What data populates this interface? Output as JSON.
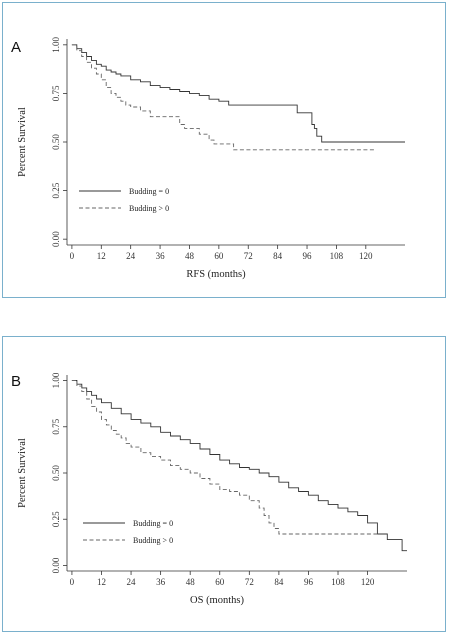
{
  "chart_data": [
    {
      "panel": "A",
      "type": "line",
      "xlabel": "RFS (months)",
      "ylabel": "Percent Survival",
      "xticks": [
        0,
        12,
        24,
        36,
        48,
        60,
        72,
        84,
        96,
        108,
        120
      ],
      "yticks": [
        0.0,
        0.25,
        0.5,
        0.75,
        1.0
      ],
      "ytick_labels": [
        "0.00",
        "0.25",
        "0.50",
        "0.75",
        "1.00"
      ],
      "xlim": [
        -2,
        136
      ],
      "ylim": [
        -0.03,
        1.03
      ],
      "legend_placement": "lower-left",
      "series": [
        {
          "name": "Budding = 0",
          "style": "solid",
          "x": [
            0,
            2,
            4,
            6,
            8,
            10,
            12,
            14,
            16,
            18,
            20,
            24,
            28,
            32,
            36,
            40,
            44,
            48,
            52,
            56,
            60,
            64,
            68,
            72,
            76,
            80,
            84,
            88,
            92,
            96,
            97,
            98,
            99,
            100,
            102,
            108,
            114,
            120,
            130,
            136
          ],
          "y": [
            1.0,
            0.98,
            0.96,
            0.94,
            0.92,
            0.9,
            0.89,
            0.87,
            0.86,
            0.85,
            0.84,
            0.82,
            0.81,
            0.79,
            0.78,
            0.77,
            0.76,
            0.75,
            0.74,
            0.72,
            0.71,
            0.69,
            0.69,
            0.69,
            0.69,
            0.69,
            0.69,
            0.69,
            0.65,
            0.65,
            0.65,
            0.59,
            0.57,
            0.53,
            0.5,
            0.5,
            0.5,
            0.5,
            0.5,
            0.5
          ]
        },
        {
          "name": "Budding > 0",
          "style": "dashed",
          "x": [
            0,
            2,
            4,
            6,
            8,
            10,
            12,
            14,
            16,
            18,
            20,
            22,
            24,
            28,
            32,
            36,
            40,
            44,
            46,
            48,
            52,
            56,
            58,
            60,
            64,
            66,
            72,
            84,
            96,
            108,
            120,
            124
          ],
          "y": [
            1.0,
            0.97,
            0.94,
            0.91,
            0.88,
            0.85,
            0.82,
            0.78,
            0.75,
            0.73,
            0.71,
            0.69,
            0.68,
            0.66,
            0.63,
            0.63,
            0.63,
            0.59,
            0.57,
            0.57,
            0.54,
            0.51,
            0.49,
            0.49,
            0.49,
            0.46,
            0.46,
            0.46,
            0.46,
            0.46,
            0.46,
            0.46
          ]
        }
      ]
    },
    {
      "panel": "B",
      "type": "line",
      "xlabel": "OS (months)",
      "ylabel": "Percent Survival",
      "xticks": [
        0,
        12,
        24,
        36,
        48,
        60,
        72,
        84,
        96,
        108,
        120
      ],
      "yticks": [
        0.0,
        0.25,
        0.5,
        0.75,
        1.0
      ],
      "ytick_labels": [
        "0.00",
        "0.25",
        "0.50",
        "0.75",
        "1.00"
      ],
      "xlim": [
        -2,
        136
      ],
      "ylim": [
        -0.03,
        1.03
      ],
      "legend_placement": "lower-left",
      "series": [
        {
          "name": "Budding = 0",
          "style": "solid",
          "x": [
            0,
            2,
            4,
            6,
            8,
            10,
            12,
            16,
            20,
            24,
            28,
            32,
            36,
            40,
            44,
            48,
            52,
            56,
            60,
            64,
            68,
            72,
            76,
            80,
            84,
            88,
            92,
            96,
            100,
            104,
            108,
            112,
            116,
            120,
            124,
            128,
            132,
            134,
            136
          ],
          "y": [
            1.0,
            0.98,
            0.96,
            0.94,
            0.92,
            0.9,
            0.88,
            0.85,
            0.82,
            0.79,
            0.77,
            0.75,
            0.72,
            0.7,
            0.68,
            0.66,
            0.63,
            0.6,
            0.57,
            0.55,
            0.53,
            0.52,
            0.5,
            0.48,
            0.45,
            0.42,
            0.4,
            0.38,
            0.35,
            0.33,
            0.31,
            0.29,
            0.27,
            0.23,
            0.17,
            0.14,
            0.14,
            0.08,
            0.08
          ]
        },
        {
          "name": "Budding > 0",
          "style": "dashed",
          "x": [
            0,
            2,
            4,
            6,
            8,
            10,
            12,
            14,
            16,
            18,
            20,
            22,
            24,
            28,
            32,
            36,
            40,
            44,
            48,
            52,
            56,
            60,
            64,
            68,
            72,
            76,
            78,
            80,
            82,
            84,
            88,
            96,
            108,
            120,
            124
          ],
          "y": [
            1.0,
            0.97,
            0.94,
            0.9,
            0.86,
            0.83,
            0.79,
            0.76,
            0.73,
            0.71,
            0.69,
            0.66,
            0.64,
            0.61,
            0.59,
            0.57,
            0.54,
            0.52,
            0.5,
            0.47,
            0.44,
            0.41,
            0.4,
            0.38,
            0.35,
            0.31,
            0.27,
            0.23,
            0.2,
            0.17,
            0.17,
            0.17,
            0.17,
            0.17,
            0.17
          ]
        }
      ]
    }
  ]
}
